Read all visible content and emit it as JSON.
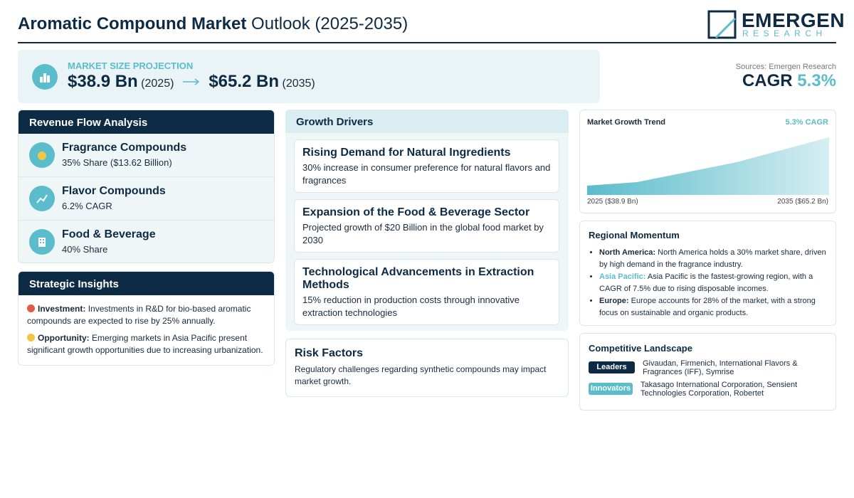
{
  "header": {
    "title_bold": "Aromatic Compound Market",
    "title_rest": "Outlook (2025-2035)",
    "logo_main": "EMERGEN",
    "logo_sub": "RESEARCH"
  },
  "projection": {
    "label": "MARKET SIZE PROJECTION",
    "start_value": "$38.9 Bn",
    "start_year": "(2025)",
    "end_value": "$65.2 Bn",
    "end_year": "(2035)"
  },
  "summary": {
    "sources": "Sources: Emergen Research",
    "cagr_label": "CAGR",
    "cagr_value": "5.3%"
  },
  "revenue_flow": {
    "title": "Revenue Flow Analysis",
    "items": [
      {
        "name": "Fragrance Compounds",
        "detail": "35% Share ($13.62 Billion)"
      },
      {
        "name": "Flavor Compounds",
        "detail": "6.2% CAGR"
      },
      {
        "name": "Food & Beverage",
        "detail": "40% Share"
      }
    ]
  },
  "strategic_insights": {
    "title": "Strategic Insights",
    "items": [
      {
        "label": "Investment:",
        "text": "Investments in R&D for bio-based aromatic compounds are expected to rise by 25% annually."
      },
      {
        "label": "Opportunity:",
        "text": "Emerging markets in Asia Pacific present significant growth opportunities due to increasing urbanization."
      }
    ]
  },
  "growth_drivers": {
    "title": "Growth Drivers",
    "items": [
      {
        "title": "Rising Demand for Natural Ingredients",
        "text": "30% increase in consumer preference for natural flavors and fragrances"
      },
      {
        "title": "Expansion of the Food & Beverage Sector",
        "text": "Projected growth of $20 Billion in the global food market by 2030"
      },
      {
        "title": "Technological Advancements in Extraction Methods",
        "text": "15% reduction in production costs through innovative extraction technologies"
      }
    ]
  },
  "risk_factors": {
    "title": "Risk Factors",
    "text": "Regulatory challenges regarding synthetic compounds may impact market growth."
  },
  "market_growth_trend": {
    "title": "Market Growth Trend",
    "badge": "5.3% CAGR",
    "start_label": "2025 ($38.9 Bn)",
    "end_label": "2035 ($65.2 Bn)"
  },
  "regional_momentum": {
    "title": "Regional Momentum",
    "items": [
      {
        "region": "North America:",
        "text": "North America holds a 30% market share, driven by high demand in the fragrance industry."
      },
      {
        "region": "Asia Pacific:",
        "text": "Asia Pacific is the fastest-growing region, with a CAGR of 7.5% due to rising disposable incomes."
      },
      {
        "region": "Europe:",
        "text": "Europe accounts for 28% of the market, with a strong focus on sustainable and organic products."
      }
    ]
  },
  "competitive_landscape": {
    "title": "Competitive Landscape",
    "rows": [
      {
        "tag": "Leaders",
        "companies": "Givaudan, Firmenich, International Flavors & Fragrances (IFF), Symrise"
      },
      {
        "tag": "Innovators",
        "companies": "Takasago International Corporation, Sensient Technologies Corporation, Robertet"
      }
    ]
  }
}
